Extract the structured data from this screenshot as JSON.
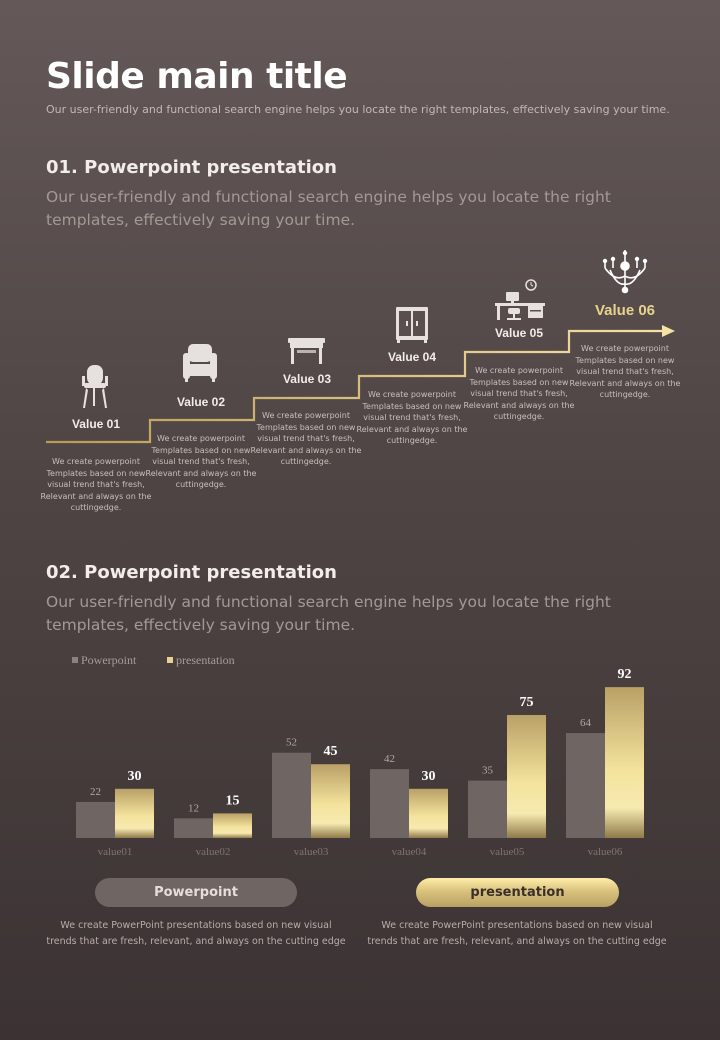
{
  "header": {
    "title": "Slide main title",
    "subtitle": "Our user-friendly and functional search engine helps you locate the right templates, effectively saving your time."
  },
  "section1": {
    "title": "01. Powerpoint presentation",
    "description": "Our user-friendly and functional search engine helps you locate the right templates, effectively saving your time.",
    "steps": [
      {
        "label": "Value 01",
        "icon": "chair-icon",
        "description": "We create powerpoint Templates based on new visual trend that's fresh, Relevant and always on the cuttingedge."
      },
      {
        "label": "Value 02",
        "icon": "armchair-icon",
        "description": "We create powerpoint Templates based on new visual trend that's fresh, Relevant and always on the cuttingedge."
      },
      {
        "label": "Value 03",
        "icon": "table-icon",
        "description": "We create powerpoint Templates based on new visual trend that's fresh, Relevant and always on the cuttingedge."
      },
      {
        "label": "Value 04",
        "icon": "wardrobe-icon",
        "description": "We create powerpoint Templates based on new visual trend that's fresh, Relevant and always on the cuttingedge."
      },
      {
        "label": "Value 05",
        "icon": "desk-icon",
        "description": "We create powerpoint Templates based on new visual trend that's fresh, Relevant and always on the cuttingedge."
      },
      {
        "label": "Value 06",
        "icon": "chandelier-icon",
        "description": "We create powerpoint Templates based on new visual trend that's fresh, Relevant and always on the cuttingedge."
      }
    ]
  },
  "section2": {
    "title": "02. Powerpoint presentation",
    "description": "Our user-friendly and functional search engine helps you locate the right templates, effectively saving your time."
  },
  "chart_data": {
    "type": "bar",
    "categories": [
      "value01",
      "value02",
      "value03",
      "value04",
      "value05",
      "value06"
    ],
    "series": [
      {
        "name": "Powerpoint",
        "values": [
          22,
          12,
          52,
          42,
          35,
          64
        ],
        "color": "#6f6563"
      },
      {
        "name": "presentation",
        "values": [
          30,
          15,
          45,
          30,
          75,
          92
        ],
        "color": "#e8d38e"
      }
    ],
    "ylim": [
      0,
      100
    ],
    "legend": "top-left",
    "grid": false
  },
  "footer": {
    "left_label": "Powerpoint",
    "left_text": "We create PowerPoint presentations based on new visual trends that are fresh, relevant, and always on the cutting edge",
    "right_label": "presentation",
    "right_text": "We create PowerPoint presentations based on new visual trends that are fresh, relevant, and always on the cutting edge"
  },
  "colors": {
    "gold": "#e8d38e",
    "gold_line": "#c9ac63",
    "grey_bar": "#6f6563"
  }
}
